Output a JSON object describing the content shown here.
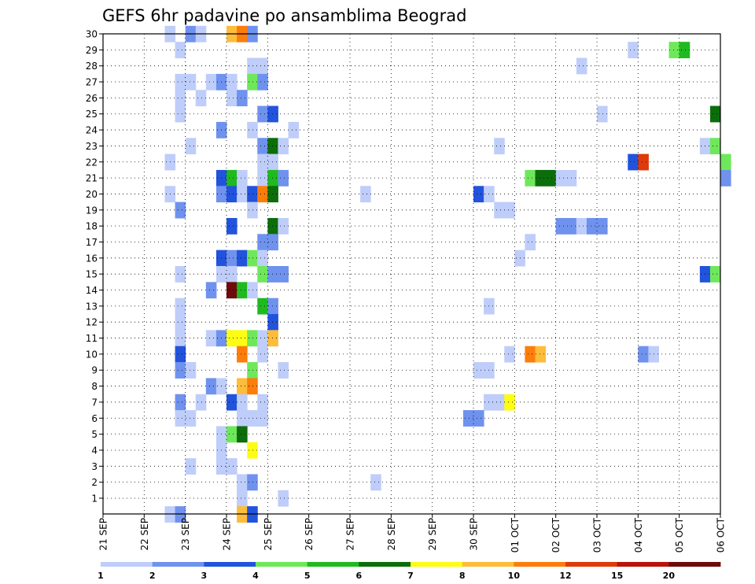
{
  "chart_data": {
    "type": "heatmap",
    "title": "GEFS 6hr padavine po ansamblima Beograd",
    "x_tick_labels": [
      "21 SEP",
      "22 SEP",
      "23 SEP",
      "24 SEP",
      "25 SEP",
      "26 SEP",
      "27 SEP",
      "28 SEP",
      "29 SEP",
      "30 SEP",
      "01 OCT",
      "02 OCT",
      "03 OCT",
      "04 OCT",
      "05 OCT",
      "06 OCT"
    ],
    "y_tick_labels": [
      "1",
      "2",
      "3",
      "4",
      "5",
      "6",
      "7",
      "8",
      "9",
      "10",
      "11",
      "12",
      "13",
      "14",
      "15",
      "16",
      "17",
      "18",
      "19",
      "20",
      "21",
      "22",
      "23",
      "24",
      "25",
      "26",
      "27",
      "28",
      "29",
      "30"
    ],
    "time_steps_per_day": 4,
    "colorbar": {
      "colors": [
        "#bfcdfa",
        "#6f92ee",
        "#2253dd",
        "#6ee85a",
        "#1fba1f",
        "#0b6e0b",
        "#fdfd14",
        "#fdbd3a",
        "#fd7d0b",
        "#de3a0b",
        "#b8140b",
        "#6e0b0b"
      ],
      "labels": [
        "1",
        "2",
        "3",
        "4",
        "5",
        "6",
        "7",
        "8",
        "10",
        "12",
        "15",
        "20"
      ]
    },
    "cells": [
      [
        30,
        6,
        0
      ],
      [
        30,
        8,
        1
      ],
      [
        30,
        9,
        0
      ],
      [
        30,
        12,
        7
      ],
      [
        30,
        13,
        8
      ],
      [
        30,
        14,
        1
      ],
      [
        29,
        7,
        0
      ],
      [
        29,
        51,
        0
      ],
      [
        29,
        55,
        3
      ],
      [
        29,
        56,
        4
      ],
      [
        28,
        14,
        0
      ],
      [
        28,
        15,
        0
      ],
      [
        28,
        46,
        0
      ],
      [
        27,
        7,
        0
      ],
      [
        27,
        8,
        0
      ],
      [
        27,
        10,
        0
      ],
      [
        27,
        11,
        1
      ],
      [
        27,
        12,
        0
      ],
      [
        27,
        14,
        3
      ],
      [
        27,
        15,
        1
      ],
      [
        26,
        7,
        0
      ],
      [
        26,
        9,
        0
      ],
      [
        26,
        12,
        0
      ],
      [
        26,
        13,
        1
      ],
      [
        25,
        7,
        0
      ],
      [
        25,
        15,
        1
      ],
      [
        25,
        16,
        2
      ],
      [
        25,
        48,
        0
      ],
      [
        25,
        59,
        5
      ],
      [
        24,
        11,
        1
      ],
      [
        24,
        14,
        0
      ],
      [
        24,
        18,
        0
      ],
      [
        23,
        8,
        0
      ],
      [
        23,
        15,
        1
      ],
      [
        23,
        16,
        5
      ],
      [
        23,
        17,
        0
      ],
      [
        23,
        38,
        0
      ],
      [
        23,
        58,
        0
      ],
      [
        23,
        59,
        3
      ],
      [
        22,
        6,
        0
      ],
      [
        22,
        15,
        0
      ],
      [
        22,
        16,
        0
      ],
      [
        22,
        51,
        2
      ],
      [
        22,
        52,
        9
      ],
      [
        22,
        60,
        3
      ],
      [
        21,
        11,
        2
      ],
      [
        21,
        12,
        4
      ],
      [
        21,
        13,
        0
      ],
      [
        21,
        15,
        0
      ],
      [
        21,
        16,
        4
      ],
      [
        21,
        17,
        1
      ],
      [
        21,
        41,
        3
      ],
      [
        21,
        42,
        5
      ],
      [
        21,
        43,
        5
      ],
      [
        21,
        44,
        0
      ],
      [
        21,
        45,
        0
      ],
      [
        21,
        60,
        1
      ],
      [
        20,
        6,
        0
      ],
      [
        20,
        11,
        1
      ],
      [
        20,
        12,
        2
      ],
      [
        20,
        13,
        0
      ],
      [
        20,
        14,
        2
      ],
      [
        20,
        15,
        8
      ],
      [
        20,
        16,
        5
      ],
      [
        20,
        25,
        0
      ],
      [
        20,
        36,
        2
      ],
      [
        20,
        37,
        0
      ],
      [
        19,
        7,
        1
      ],
      [
        19,
        14,
        0
      ],
      [
        19,
        38,
        0
      ],
      [
        19,
        39,
        0
      ],
      [
        18,
        12,
        2
      ],
      [
        18,
        16,
        5
      ],
      [
        18,
        17,
        0
      ],
      [
        18,
        44,
        1
      ],
      [
        18,
        45,
        1
      ],
      [
        18,
        46,
        0
      ],
      [
        18,
        47,
        1
      ],
      [
        18,
        48,
        1
      ],
      [
        17,
        15,
        1
      ],
      [
        17,
        16,
        1
      ],
      [
        17,
        41,
        0
      ],
      [
        16,
        11,
        2
      ],
      [
        16,
        12,
        1
      ],
      [
        16,
        13,
        2
      ],
      [
        16,
        14,
        3
      ],
      [
        16,
        15,
        0
      ],
      [
        16,
        40,
        0
      ],
      [
        15,
        7,
        0
      ],
      [
        15,
        11,
        0
      ],
      [
        15,
        12,
        0
      ],
      [
        15,
        15,
        3
      ],
      [
        15,
        16,
        1
      ],
      [
        15,
        17,
        1
      ],
      [
        15,
        58,
        2
      ],
      [
        15,
        59,
        3
      ],
      [
        14,
        10,
        1
      ],
      [
        14,
        12,
        11
      ],
      [
        14,
        13,
        4
      ],
      [
        14,
        14,
        0
      ],
      [
        13,
        7,
        0
      ],
      [
        13,
        15,
        4
      ],
      [
        13,
        16,
        1
      ],
      [
        13,
        37,
        0
      ],
      [
        12,
        7,
        0
      ],
      [
        12,
        16,
        2
      ],
      [
        11,
        7,
        0
      ],
      [
        11,
        10,
        0
      ],
      [
        11,
        11,
        1
      ],
      [
        11,
        12,
        6
      ],
      [
        11,
        13,
        6
      ],
      [
        11,
        14,
        3
      ],
      [
        11,
        15,
        0
      ],
      [
        11,
        16,
        7
      ],
      [
        10,
        7,
        2
      ],
      [
        10,
        13,
        8
      ],
      [
        10,
        15,
        0
      ],
      [
        10,
        39,
        0
      ],
      [
        10,
        41,
        8
      ],
      [
        10,
        42,
        7
      ],
      [
        10,
        52,
        1
      ],
      [
        10,
        53,
        0
      ],
      [
        9,
        7,
        1
      ],
      [
        9,
        8,
        0
      ],
      [
        9,
        14,
        3
      ],
      [
        9,
        17,
        0
      ],
      [
        9,
        36,
        0
      ],
      [
        9,
        37,
        0
      ],
      [
        8,
        10,
        1
      ],
      [
        8,
        11,
        0
      ],
      [
        8,
        13,
        7
      ],
      [
        8,
        14,
        8
      ],
      [
        7,
        7,
        1
      ],
      [
        7,
        9,
        0
      ],
      [
        7,
        12,
        2
      ],
      [
        7,
        13,
        0
      ],
      [
        7,
        15,
        0
      ],
      [
        7,
        37,
        0
      ],
      [
        7,
        38,
        0
      ],
      [
        7,
        39,
        6
      ],
      [
        6,
        7,
        0
      ],
      [
        6,
        8,
        0
      ],
      [
        6,
        13,
        0
      ],
      [
        6,
        14,
        0
      ],
      [
        6,
        15,
        0
      ],
      [
        6,
        35,
        1
      ],
      [
        6,
        36,
        1
      ],
      [
        5,
        11,
        0
      ],
      [
        5,
        12,
        3
      ],
      [
        5,
        13,
        5
      ],
      [
        4,
        11,
        0
      ],
      [
        4,
        14,
        6
      ],
      [
        3,
        8,
        0
      ],
      [
        3,
        11,
        0
      ],
      [
        3,
        12,
        0
      ],
      [
        2,
        13,
        0
      ],
      [
        2,
        14,
        1
      ],
      [
        2,
        26,
        0
      ],
      [
        1,
        13,
        0
      ],
      [
        1,
        17,
        0
      ],
      [
        0,
        6,
        0
      ],
      [
        0,
        7,
        1
      ],
      [
        0,
        13,
        7
      ],
      [
        0,
        14,
        2
      ]
    ]
  }
}
